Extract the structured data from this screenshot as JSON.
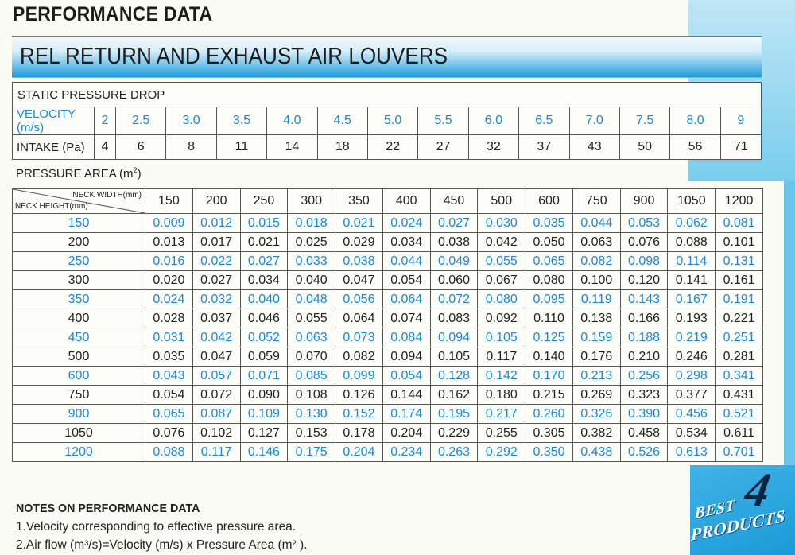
{
  "page_title": "PERFORMANCE DATA",
  "banner_title": "REL RETURN AND EXHAUST AIR LOUVERS",
  "static_pressure": {
    "title": "STATIC PRESSURE DROP",
    "velocity_label": "VELOCITY (m/s)",
    "intake_label": "INTAKE (Pa)",
    "velocity": [
      "2",
      "2.5",
      "3.0",
      "3.5",
      "4.0",
      "4.5",
      "5.0",
      "5.5",
      "6.0",
      "6.5",
      "7.0",
      "7.5",
      "8.0",
      "9"
    ],
    "intake": [
      "4",
      "6",
      "8",
      "11",
      "14",
      "18",
      "22",
      "27",
      "32",
      "37",
      "43",
      "50",
      "56",
      "71"
    ]
  },
  "pressure_area": {
    "title": "PRESSURE AREA (m",
    "title_sup": "2",
    "title_end": ")",
    "width_label": "NECK WIDTH(mm)",
    "height_label": "NECK HEIGHT(mm)",
    "widths": [
      "150",
      "200",
      "250",
      "300",
      "350",
      "400",
      "450",
      "500",
      "600",
      "750",
      "900",
      "1050",
      "1200"
    ],
    "rows": [
      {
        "height": "150",
        "values": [
          "0.009",
          "0.012",
          "0.015",
          "0.018",
          "0.021",
          "0.024",
          "0.027",
          "0.030",
          "0.035",
          "0.044",
          "0.053",
          "0.062",
          "0.081"
        ]
      },
      {
        "height": "200",
        "values": [
          "0.013",
          "0.017",
          "0.021",
          "0.025",
          "0.029",
          "0.034",
          "0.038",
          "0.042",
          "0.050",
          "0.063",
          "0.076",
          "0.088",
          "0.101"
        ]
      },
      {
        "height": "250",
        "values": [
          "0.016",
          "0.022",
          "0.027",
          "0.033",
          "0.038",
          "0.044",
          "0.049",
          "0.055",
          "0.065",
          "0.082",
          "0.098",
          "0.114",
          "0.131"
        ]
      },
      {
        "height": "300",
        "values": [
          "0.020",
          "0.027",
          "0.034",
          "0.040",
          "0.047",
          "0.054",
          "0.060",
          "0.067",
          "0.080",
          "0.100",
          "0.120",
          "0.141",
          "0.161"
        ]
      },
      {
        "height": "350",
        "values": [
          "0.024",
          "0.032",
          "0.040",
          "0.048",
          "0.056",
          "0.064",
          "0.072",
          "0.080",
          "0.095",
          "0.119",
          "0.143",
          "0.167",
          "0.191"
        ]
      },
      {
        "height": "400",
        "values": [
          "0.028",
          "0.037",
          "0.046",
          "0.055",
          "0.064",
          "0.074",
          "0.083",
          "0.092",
          "0.110",
          "0.138",
          "0.166",
          "0.193",
          "0.221"
        ]
      },
      {
        "height": "450",
        "values": [
          "0.031",
          "0.042",
          "0.052",
          "0.063",
          "0.073",
          "0.084",
          "0.094",
          "0.105",
          "0.125",
          "0.159",
          "0.188",
          "0.219",
          "0.251"
        ]
      },
      {
        "height": "500",
        "values": [
          "0.035",
          "0.047",
          "0.059",
          "0.070",
          "0.082",
          "0.094",
          "0.105",
          "0.117",
          "0.140",
          "0.176",
          "0.210",
          "0.246",
          "0.281"
        ]
      },
      {
        "height": "600",
        "values": [
          "0.043",
          "0.057",
          "0.071",
          "0.085",
          "0.099",
          "0.054",
          "0.128",
          "0.142",
          "0.170",
          "0.213",
          "0.256",
          "0.298",
          "0.341"
        ]
      },
      {
        "height": "750",
        "values": [
          "0.054",
          "0.072",
          "0.090",
          "0.108",
          "0.126",
          "0.144",
          "0.162",
          "0.180",
          "0.215",
          "0.269",
          "0.323",
          "0.377",
          "0.431"
        ]
      },
      {
        "height": "900",
        "values": [
          "0.065",
          "0.087",
          "0.109",
          "0.130",
          "0.152",
          "0.174",
          "0.195",
          "0.217",
          "0.260",
          "0.326",
          "0.390",
          "0.456",
          "0.521"
        ]
      },
      {
        "height": "1050",
        "values": [
          "0.076",
          "0.102",
          "0.127",
          "0.153",
          "0.178",
          "0.204",
          "0.229",
          "0.255",
          "0.305",
          "0.382",
          "0.458",
          "0.534",
          "0.611"
        ]
      },
      {
        "height": "1200",
        "values": [
          "0.088",
          "0.117",
          "0.146",
          "0.175",
          "0.204",
          "0.234",
          "0.263",
          "0.292",
          "0.350",
          "0.438",
          "0.526",
          "0.613",
          "0.701"
        ]
      }
    ]
  },
  "notes": {
    "title": "NOTES ON PERFORMANCE DATA",
    "items": [
      "1.Velocity corresponding to effective pressure area.",
      "2.Air flow (m³/s)=Velocity (m/s) x Pressure Area (m² )."
    ]
  },
  "badge": {
    "line1": "BEST",
    "number": "4",
    "line2": "PRODUCTS"
  },
  "colors": {
    "accent_blue": "#1a8ad6",
    "band_blue": "#1f9ad9",
    "text": "#222222"
  }
}
